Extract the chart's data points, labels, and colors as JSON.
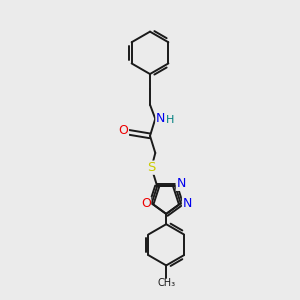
{
  "background_color": "#ebebeb",
  "bond_color": "#1a1a1a",
  "figsize": [
    3.0,
    3.0
  ],
  "dpi": 100,
  "atom_colors": {
    "N": "#0000ee",
    "O": "#ee0000",
    "S": "#cccc00",
    "H": "#008080",
    "C": "#1a1a1a"
  },
  "lw": 1.4,
  "fontsize": 8.5
}
